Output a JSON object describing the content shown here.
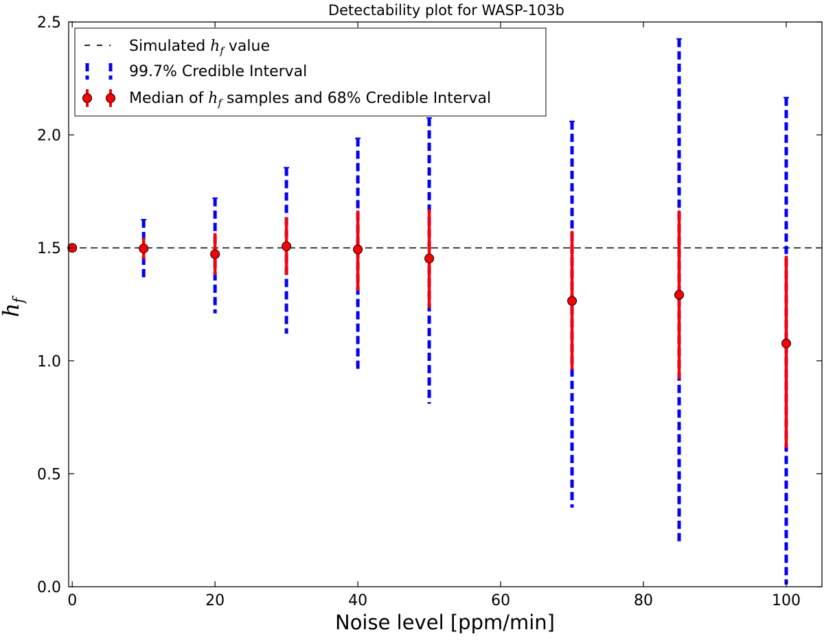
{
  "chart_data": {
    "type": "scatter",
    "title": "Detectability plot for WASP-103b",
    "xlabel": "Noise level [ppm/min]",
    "ylabel": "h_f",
    "xlim": [
      -0.5,
      105
    ],
    "ylim": [
      0.0,
      2.5
    ],
    "x_ticks": [
      0,
      20,
      40,
      60,
      80,
      100
    ],
    "y_ticks": [
      0.0,
      0.5,
      1.0,
      1.5,
      2.0,
      2.5
    ],
    "x_tick_labels": [
      "0",
      "20",
      "40",
      "60",
      "80",
      "100"
    ],
    "y_tick_labels": [
      "0.0",
      "0.5",
      "1.0",
      "1.5",
      "2.0",
      "2.5"
    ],
    "grid": false,
    "legend_position": "top-left",
    "reference_line": {
      "y": 1.5,
      "style": "dashed",
      "color": "#000000"
    },
    "legend": {
      "simulated": {
        "prefix": "Simulated ",
        "math": "h",
        "sub": "f",
        "suffix": " value"
      },
      "ci997": {
        "text": "99.7% Credible Interval"
      },
      "median": {
        "prefix": "Median of ",
        "math": "h",
        "sub": "f",
        "suffix": " samples and 68% Credible Interval"
      }
    },
    "series": [
      {
        "x": [
          0,
          10,
          20,
          30,
          40,
          50,
          70,
          85,
          100
        ],
        "median": [
          1.5,
          1.497,
          1.472,
          1.507,
          1.493,
          1.453,
          1.265,
          1.292,
          1.077
        ],
        "ci68_low": [
          1.5,
          1.45,
          1.38,
          1.38,
          1.31,
          1.235,
          0.96,
          0.92,
          0.615
        ],
        "ci68_high": [
          1.5,
          1.545,
          1.565,
          1.635,
          1.665,
          1.67,
          1.575,
          1.665,
          1.465
        ],
        "ci997_low": [
          1.5,
          1.365,
          1.21,
          1.12,
          0.955,
          0.81,
          0.35,
          0.185,
          0.01
        ],
        "ci997_high": [
          1.5,
          1.625,
          1.72,
          1.855,
          1.985,
          2.075,
          2.06,
          2.425,
          2.165
        ]
      }
    ],
    "colors": {
      "ci997": "#0000ff",
      "ci68": "#ff0000",
      "marker": "#ff0000",
      "marker_edge": "#000000",
      "reference": "#000000"
    }
  }
}
